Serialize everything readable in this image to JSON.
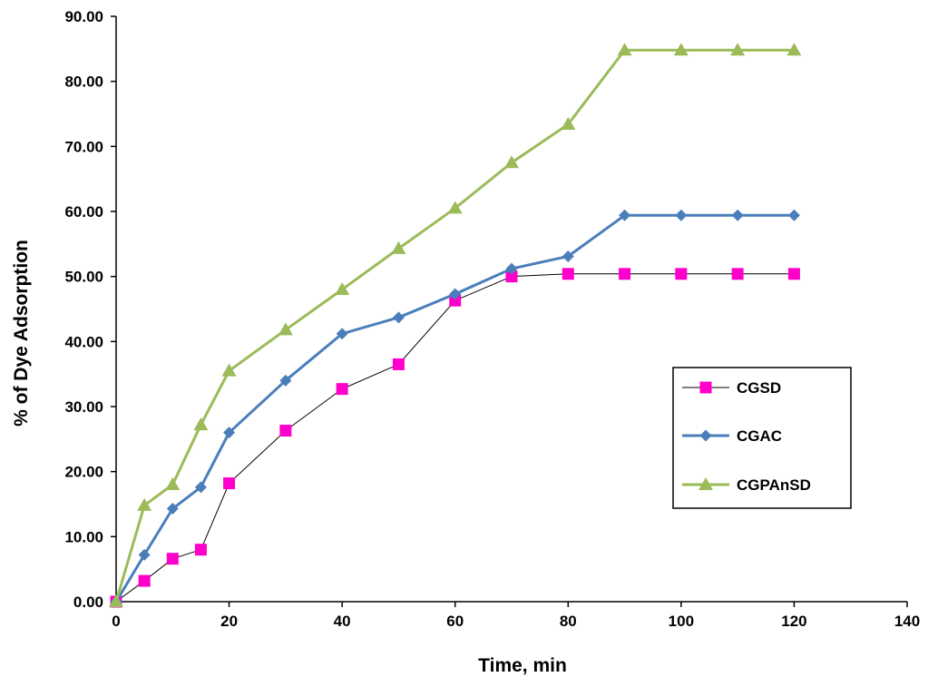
{
  "chart_data": {
    "type": "line",
    "xlabel": "Time, min",
    "ylabel": "% of Dye Adsorption",
    "xlim": [
      0,
      140
    ],
    "ylim": [
      0,
      90
    ],
    "xticks": [
      0,
      20,
      40,
      60,
      80,
      100,
      120,
      140
    ],
    "yticks": [
      0,
      10,
      20,
      30,
      40,
      50,
      60,
      70,
      80,
      90
    ],
    "xtick_labels": [
      "0",
      "20",
      "40",
      "60",
      "80",
      "100",
      "120",
      "140"
    ],
    "ytick_labels": [
      "0.00",
      "10.00",
      "20.00",
      "30.00",
      "40.00",
      "50.00",
      "60.00",
      "70.00",
      "80.00",
      "90.00"
    ],
    "grid": false,
    "legend_position": "right",
    "series": [
      {
        "name": "CGSD",
        "marker": "square",
        "color": "#ff00cc",
        "line_color": "#000000",
        "x": [
          0,
          5,
          10,
          15,
          20,
          30,
          40,
          50,
          60,
          70,
          80,
          90,
          100,
          110,
          120
        ],
        "y": [
          0,
          3.2,
          6.6,
          8.0,
          18.2,
          26.3,
          32.7,
          36.5,
          46.3,
          50.0,
          50.4,
          50.4,
          50.4,
          50.4,
          50.4
        ]
      },
      {
        "name": "CGAC",
        "marker": "diamond",
        "color": "#4a7ebb",
        "line_color": "#4a7ebb",
        "x": [
          0,
          5,
          10,
          15,
          20,
          30,
          40,
          50,
          60,
          70,
          80,
          90,
          100,
          110,
          120
        ],
        "y": [
          0,
          7.2,
          14.3,
          17.6,
          26.0,
          34.0,
          41.2,
          43.7,
          47.3,
          51.2,
          53.1,
          59.4,
          59.4,
          59.4,
          59.4
        ]
      },
      {
        "name": "CGPAnSD",
        "marker": "triangle",
        "color": "#9bbb59",
        "line_color": "#9bbb59",
        "x": [
          0,
          5,
          10,
          15,
          20,
          30,
          40,
          50,
          60,
          70,
          80,
          90,
          100,
          110,
          120
        ],
        "y": [
          0,
          14.8,
          18.0,
          27.2,
          35.5,
          41.8,
          48.0,
          54.3,
          60.5,
          67.5,
          73.4,
          84.8,
          84.8,
          84.8,
          84.8
        ]
      }
    ]
  }
}
